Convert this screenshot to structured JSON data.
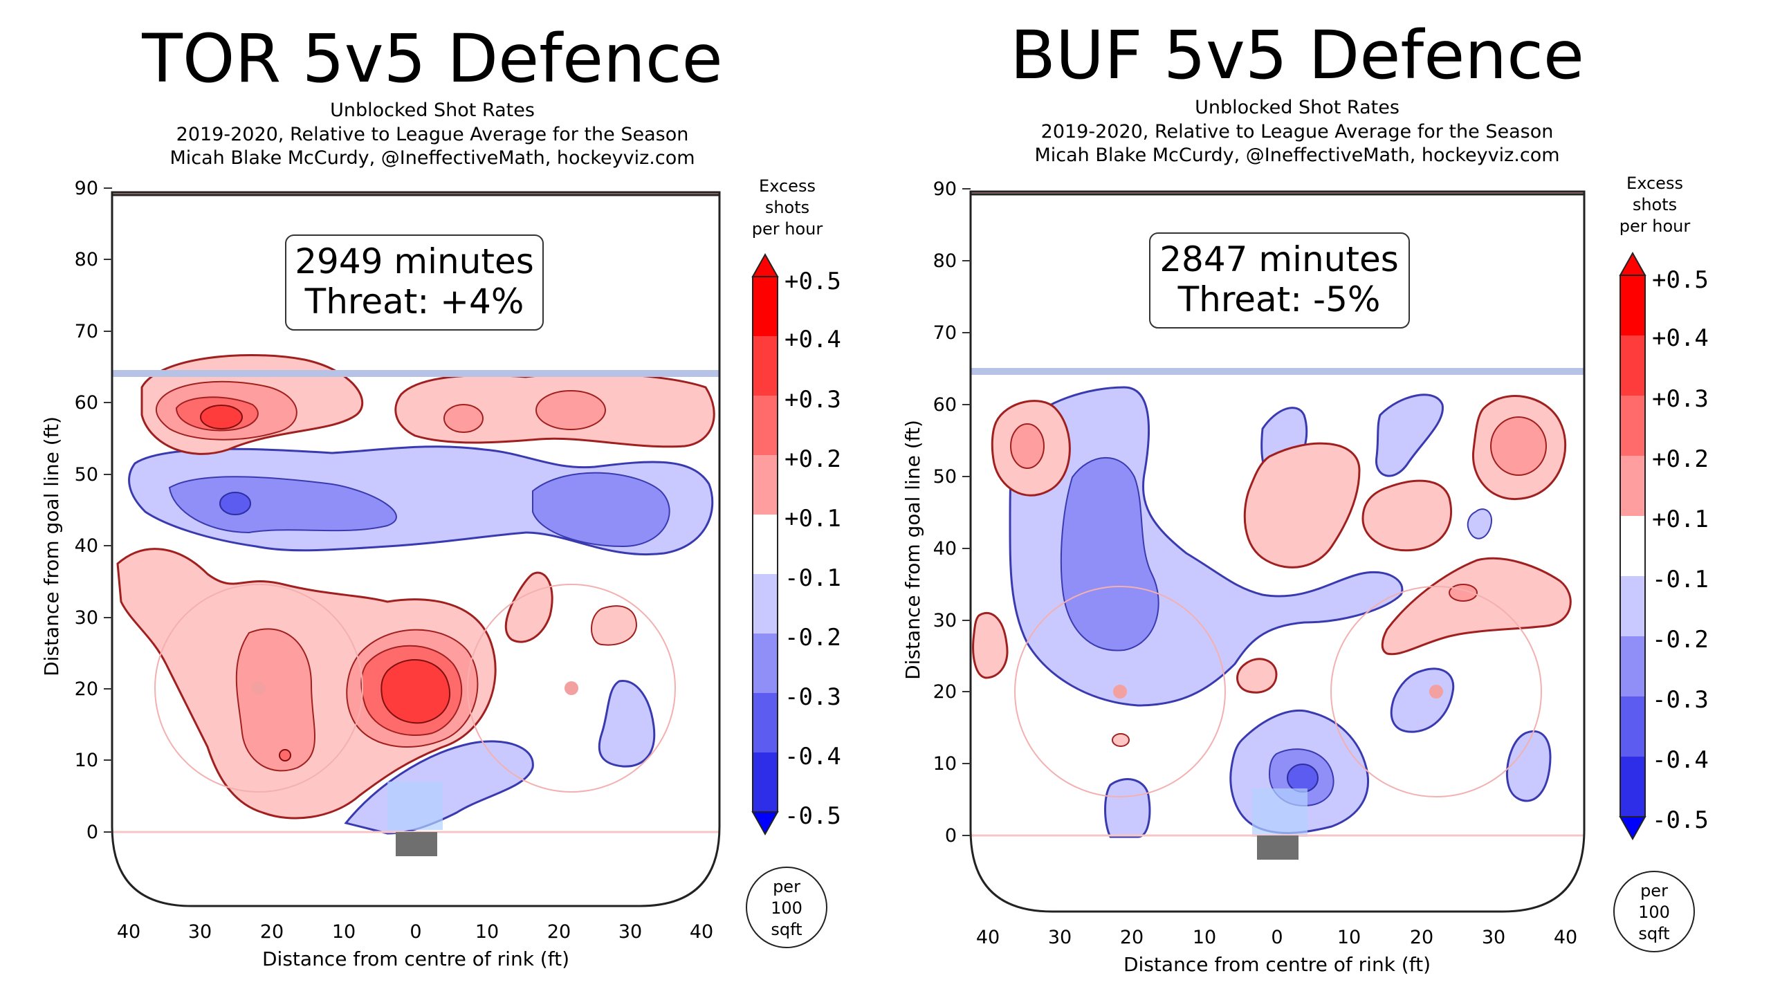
{
  "chart_data": [
    {
      "type": "heatmap",
      "title": "TOR 5v5 Defence",
      "subtitle": [
        "Unblocked Shot Rates",
        "2019-2020, Relative to League Average for the Season",
        "Micah Blake McCurdy, @IneffectiveMath, hockeyviz.com"
      ],
      "xlabel": "Distance from centre of rink (ft)",
      "ylabel": "Distance from goal line (ft)",
      "xlim": [
        -42.5,
        42.5
      ],
      "ylim": [
        -11,
        89
      ],
      "x_ticks": [
        "40",
        "30",
        "20",
        "10",
        "0",
        "10",
        "20",
        "30",
        "40"
      ],
      "y_ticks": [
        "0",
        "10",
        "20",
        "30",
        "40",
        "50",
        "60",
        "70",
        "80",
        "90"
      ],
      "annotation": [
        "2949 minutes",
        "Threat: +4%"
      ],
      "legend": {
        "title": [
          "Excess",
          "shots",
          "per hour"
        ],
        "levels": [
          "+0.5",
          "+0.4",
          "+0.3",
          "+0.2",
          "+0.1",
          "-0.1",
          "-0.2",
          "-0.3",
          "-0.4",
          "-0.5"
        ],
        "unit": [
          "per",
          "100",
          "sqft"
        ]
      },
      "regions": [
        {
          "label": "upper left slot",
          "x": -27,
          "y": 57,
          "value": 0.3
        },
        {
          "label": "upper right point",
          "x": 22,
          "y": 58,
          "value": 0.2
        },
        {
          "label": "upper centre",
          "x": 7,
          "y": 57,
          "value": 0.2
        },
        {
          "label": "left blue band",
          "x": -25,
          "y": 45,
          "value": -0.3
        },
        {
          "label": "right blue band",
          "x": 20,
          "y": 45,
          "value": -0.2
        },
        {
          "label": "left circle",
          "x": -20,
          "y": 18,
          "value": 0.2
        },
        {
          "label": "slot",
          "x": 0,
          "y": 20,
          "value": 0.4
        },
        {
          "label": "right faceoff",
          "x": 30,
          "y": 12,
          "value": -0.2
        },
        {
          "label": "crease right",
          "x": 10,
          "y": 6,
          "value": -0.2
        }
      ]
    },
    {
      "type": "heatmap",
      "title": "BUF 5v5 Defence",
      "subtitle": [
        "Unblocked Shot Rates",
        "2019-2020, Relative to League Average for the Season",
        "Micah Blake McCurdy, @IneffectiveMath, hockeyviz.com"
      ],
      "xlabel": "Distance from centre of rink (ft)",
      "ylabel": "Distance from goal line (ft)",
      "xlim": [
        -42.5,
        42.5
      ],
      "ylim": [
        -11,
        89
      ],
      "x_ticks": [
        "40",
        "30",
        "20",
        "10",
        "0",
        "10",
        "20",
        "30",
        "40"
      ],
      "y_ticks": [
        "0",
        "10",
        "20",
        "30",
        "40",
        "50",
        "60",
        "70",
        "80",
        "90"
      ],
      "annotation": [
        "2847 minutes",
        "Threat: -5%"
      ],
      "legend": {
        "title": [
          "Excess",
          "shots",
          "per hour"
        ],
        "levels": [
          "+0.5",
          "+0.4",
          "+0.3",
          "+0.2",
          "+0.1",
          "-0.1",
          "-0.2",
          "-0.3",
          "-0.4",
          "-0.5"
        ],
        "unit": [
          "per",
          "100",
          "sqft"
        ]
      },
      "regions": [
        {
          "label": "upper left corner",
          "x": -34,
          "y": 53,
          "value": 0.2
        },
        {
          "label": "upper right corner",
          "x": 33,
          "y": 53,
          "value": 0.3
        },
        {
          "label": "left side",
          "x": -24,
          "y": 35,
          "value": -0.3
        },
        {
          "label": "upper centre",
          "x": 10,
          "y": 45,
          "value": 0.1
        },
        {
          "label": "right mid",
          "x": 25,
          "y": 29,
          "value": 0.2
        },
        {
          "label": "crease",
          "x": 4,
          "y": 8,
          "value": -0.4
        },
        {
          "label": "right faceoff",
          "x": 22,
          "y": 19,
          "value": -0.2
        },
        {
          "label": "low right",
          "x": 36,
          "y": 10,
          "value": -0.2
        }
      ]
    }
  ],
  "colors": {
    "red5": "#ff0000",
    "red4": "#ff3c3c",
    "red3": "#ff6b6b",
    "red2": "#ff9e9e",
    "red1": "#ffc6c6",
    "blue1": "#c9c9ff",
    "blue2": "#8f8ff7",
    "blue3": "#5c5cf0",
    "blue4": "#2e2ee8",
    "blue5": "#0000ff",
    "neutral": "#ffffff"
  }
}
